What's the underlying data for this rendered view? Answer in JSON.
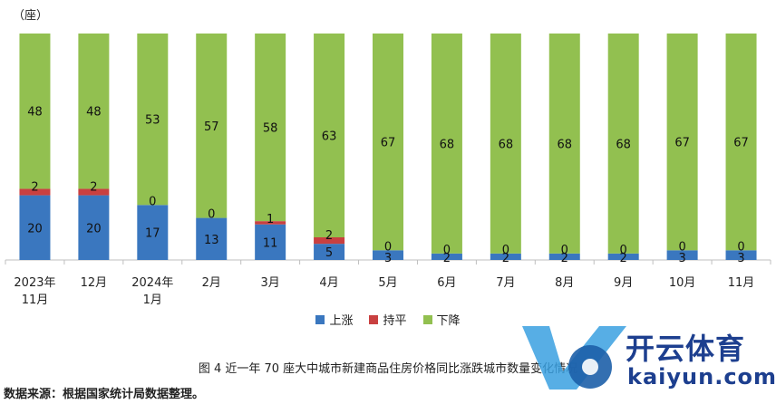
{
  "chart_data": {
    "type": "bar",
    "stacked": true,
    "unit_label": "（座）",
    "categories": [
      "2023年\n11月",
      "12月",
      "2024年\n1月",
      "2月",
      "3月",
      "4月",
      "5月",
      "6月",
      "7月",
      "8月",
      "9月",
      "10月",
      "11月"
    ],
    "series": [
      {
        "name": "上涨",
        "color": "#3a77bf",
        "values": [
          20,
          20,
          17,
          13,
          11,
          5,
          3,
          2,
          2,
          2,
          2,
          3,
          3
        ]
      },
      {
        "name": "持平",
        "color": "#c94040",
        "values": [
          2,
          2,
          0,
          0,
          1,
          2,
          0,
          0,
          0,
          0,
          0,
          0,
          0
        ]
      },
      {
        "name": "下降",
        "color": "#92c050",
        "values": [
          48,
          48,
          53,
          57,
          58,
          63,
          67,
          68,
          68,
          68,
          68,
          67,
          67
        ]
      }
    ],
    "ylim": [
      0,
      70
    ],
    "legend_position": "bottom"
  },
  "caption": "图 4  近一年 70 座大中城市新建商品住房价格同比涨跌城市数量变化情况",
  "source": "数据来源：根据国家统计局数据整理。",
  "watermark": {
    "text": "开云体育",
    "url_text": "kaiyun.com"
  }
}
